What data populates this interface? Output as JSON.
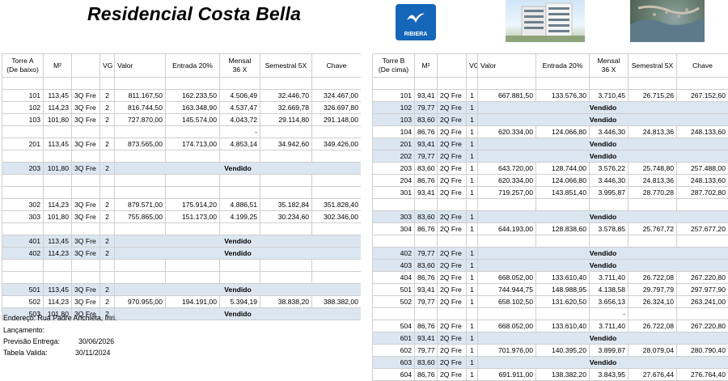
{
  "title": "Residencial Costa Bella",
  "logo_text": "RIBIERA",
  "brand_color": "#1565b8",
  "sold_row_color": "#dce6f1",
  "towerA": {
    "headers": [
      "Torre A\n(De baixo)",
      "M²",
      "",
      "VG",
      "Valor",
      "Entrada 20%",
      "Mensal\n36 X",
      "Semestral 5X",
      "Chave"
    ],
    "rows": [
      {
        "type": "blank"
      },
      {
        "type": "row",
        "unit": "101",
        "m2": "113,45",
        "tipo": "3Q Fre",
        "vg": "2",
        "valor": "811.167,50",
        "entrada": "162.233,50",
        "mensal": "4.506,49",
        "semestral": "32.446,70",
        "chave": "324.467,00"
      },
      {
        "type": "row",
        "unit": "102",
        "m2": "114,23",
        "tipo": "3Q Fre",
        "vg": "2",
        "valor": "816.744,50",
        "entrada": "163.348,90",
        "mensal": "4.537,47",
        "semestral": "32.669,78",
        "chave": "326.697,80"
      },
      {
        "type": "row",
        "unit": "103",
        "m2": "101,80",
        "tipo": "3Q Fre",
        "vg": "2",
        "valor": "727.870,00",
        "entrada": "145.574,00",
        "mensal": "4.043,72",
        "semestral": "29.114,80",
        "chave": "291.148,00"
      },
      {
        "type": "row",
        "unit": "",
        "m2": "",
        "tipo": "",
        "vg": "",
        "valor": "",
        "entrada": "",
        "mensal": "-",
        "semestral": "",
        "chave": ""
      },
      {
        "type": "row",
        "unit": "201",
        "m2": "113,45",
        "tipo": "3Q Fre",
        "vg": "2",
        "valor": "873.565,00",
        "entrada": "174.713,00",
        "mensal": "4.853,14",
        "semestral": "34.942,60",
        "chave": "349.426,00"
      },
      {
        "type": "blank"
      },
      {
        "type": "sold",
        "unit": "203",
        "m2": "101,80",
        "tipo": "3Q Fre",
        "vg": "2",
        "label": "Vendido"
      },
      {
        "type": "blank"
      },
      {
        "type": "blank"
      },
      {
        "type": "row",
        "unit": "302",
        "m2": "114,23",
        "tipo": "3Q Fre",
        "vg": "2",
        "valor": "879.571,00",
        "entrada": "175.914,20",
        "mensal": "4.886,51",
        "semestral": "35.182,84",
        "chave": "351.828,40"
      },
      {
        "type": "row",
        "unit": "303",
        "m2": "101,80",
        "tipo": "3Q Fre",
        "vg": "2",
        "valor": "755.865,00",
        "entrada": "151.173,00",
        "mensal": "4.199,25",
        "semestral": "30.234,60",
        "chave": "302.346,00"
      },
      {
        "type": "blank"
      },
      {
        "type": "sold",
        "unit": "401",
        "m2": "113,45",
        "tipo": "3Q Fre",
        "vg": "2",
        "label": "Vendido"
      },
      {
        "type": "sold",
        "unit": "402",
        "m2": "114,23",
        "tipo": "3Q Fre",
        "vg": "2",
        "label": "Vendido"
      },
      {
        "type": "blank"
      },
      {
        "type": "blank"
      },
      {
        "type": "sold",
        "unit": "501",
        "m2": "113,45",
        "tipo": "3Q Fre",
        "vg": "2",
        "label": "Vendido"
      },
      {
        "type": "row",
        "unit": "502",
        "m2": "114,23",
        "tipo": "3Q Fre",
        "vg": "2",
        "valor": "970.955,00",
        "entrada": "194.191,00",
        "mensal": "5.394,19",
        "semestral": "38.838,20",
        "chave": "388.382,00"
      },
      {
        "type": "sold",
        "unit": "503",
        "m2": "101,80",
        "tipo": "3Q Fre",
        "vg": "2",
        "label": "Vendido"
      }
    ]
  },
  "towerB": {
    "headers": [
      "Torre B\n(De cima)",
      "M²",
      "",
      "VG",
      "Valor",
      "Entrada 20%",
      "Mensal\n36 X",
      "Semestral 5X",
      "Chave"
    ],
    "rows": [
      {
        "type": "blank"
      },
      {
        "type": "row",
        "unit": "101",
        "m2": "93,41",
        "tipo": "2Q Fre",
        "vg": "1",
        "valor": "667.881,50",
        "entrada": "133.576,30",
        "mensal": "3.710,45",
        "semestral": "26.715,26",
        "chave": "267.152,60"
      },
      {
        "type": "sold",
        "unit": "102",
        "m2": "79,77",
        "tipo": "2Q Fre",
        "vg": "1",
        "label": "Vendido"
      },
      {
        "type": "sold",
        "unit": "103",
        "m2": "83,60",
        "tipo": "2Q Fre",
        "vg": "1",
        "label": "Vendido"
      },
      {
        "type": "row",
        "unit": "104",
        "m2": "86,76",
        "tipo": "2Q Fre",
        "vg": "1",
        "valor": "620.334,00",
        "entrada": "124.066,80",
        "mensal": "3.446,30",
        "semestral": "24.813,36",
        "chave": "248.133,60"
      },
      {
        "type": "sold",
        "unit": "201",
        "m2": "93,41",
        "tipo": "2Q Fre",
        "vg": "1",
        "label": "Vendido"
      },
      {
        "type": "sold",
        "unit": "202",
        "m2": "79,77",
        "tipo": "2Q Fre",
        "vg": "1",
        "label": "Vendido"
      },
      {
        "type": "row",
        "unit": "203",
        "m2": "83,60",
        "tipo": "2Q Fre",
        "vg": "1",
        "valor": "643.720,00",
        "entrada": "128.744,00",
        "mensal": "3.576,22",
        "semestral": "25.748,80",
        "chave": "257.488,00"
      },
      {
        "type": "row",
        "unit": "204",
        "m2": "86,76",
        "tipo": "2Q Fre",
        "vg": "1",
        "valor": "620.334,00",
        "entrada": "124.066,80",
        "mensal": "3.446,30",
        "semestral": "24.813,36",
        "chave": "248.133,60"
      },
      {
        "type": "row",
        "unit": "301",
        "m2": "93,41",
        "tipo": "2Q Fre",
        "vg": "1",
        "valor": "719.257,00",
        "entrada": "143.851,40",
        "mensal": "3.995,87",
        "semestral": "28.770,28",
        "chave": "287.702,80"
      },
      {
        "type": "blank"
      },
      {
        "type": "sold",
        "unit": "303",
        "m2": "83,60",
        "tipo": "2Q Fre",
        "vg": "1",
        "label": "Vendido"
      },
      {
        "type": "row",
        "unit": "304",
        "m2": "86,76",
        "tipo": "2Q Fre",
        "vg": "1",
        "valor": "644.193,00",
        "entrada": "128.838,60",
        "mensal": "3.578,85",
        "semestral": "25.767,72",
        "chave": "257.677,20"
      },
      {
        "type": "blank"
      },
      {
        "type": "sold",
        "unit": "402",
        "m2": "79,77",
        "tipo": "2Q Fre",
        "vg": "1",
        "label": "Vendido"
      },
      {
        "type": "sold",
        "unit": "403",
        "m2": "83,60",
        "tipo": "2Q Fre",
        "vg": "1",
        "label": "Vendido"
      },
      {
        "type": "row",
        "unit": "404",
        "m2": "86,76",
        "tipo": "2Q Fre",
        "vg": "1",
        "valor": "668.052,00",
        "entrada": "133.610,40",
        "mensal": "3.711,40",
        "semestral": "26.722,08",
        "chave": "267.220,80"
      },
      {
        "type": "row",
        "unit": "501",
        "m2": "93,41",
        "tipo": "2Q Fre",
        "vg": "1",
        "valor": "744.944,75",
        "entrada": "148.988,95",
        "mensal": "4.138,58",
        "semestral": "29.797,79",
        "chave": "297.977,90"
      },
      {
        "type": "row",
        "unit": "502",
        "m2": "79,77",
        "tipo": "2Q Fre",
        "vg": "1",
        "valor": "658.102,50",
        "entrada": "131.620,50",
        "mensal": "3.656,13",
        "semestral": "26.324,10",
        "chave": "263.241,00"
      },
      {
        "type": "row",
        "unit": "",
        "m2": "",
        "tipo": "",
        "vg": "",
        "valor": "",
        "entrada": "",
        "mensal": "-",
        "semestral": "",
        "chave": ""
      },
      {
        "type": "row",
        "unit": "504",
        "m2": "86,76",
        "tipo": "2Q Fre",
        "vg": "1",
        "valor": "668.052,00",
        "entrada": "133.610,40",
        "mensal": "3.711,40",
        "semestral": "26.722,08",
        "chave": "267.220,80"
      },
      {
        "type": "sold",
        "unit": "601",
        "m2": "93,41",
        "tipo": "2Q Fre",
        "vg": "1",
        "label": "Vendido"
      },
      {
        "type": "row",
        "unit": "602",
        "m2": "79,77",
        "tipo": "2Q Fre",
        "vg": "1",
        "valor": "701.976,00",
        "entrada": "140.395,20",
        "mensal": "3.899,87",
        "semestral": "28.079,04",
        "chave": "280.790,40"
      },
      {
        "type": "sold",
        "unit": "603",
        "m2": "83,60",
        "tipo": "2Q Fre",
        "vg": "1",
        "label": "Vendido"
      },
      {
        "type": "row",
        "unit": "604",
        "m2": "86,76",
        "tipo": "2Q Fre",
        "vg": "1",
        "valor": "691.911,00",
        "entrada": "138.382,20",
        "mensal": "3.843,95",
        "semestral": "27.676,44",
        "chave": "276.764,40"
      }
    ]
  },
  "info": {
    "endereco": "Endereço: Rua Padre Anchieta, Iriri.",
    "lancamento": "Lançamento:",
    "previsao_label": "Previsão Entrega:",
    "previsao_value": "30/06/2026",
    "tabela_label": "Tabela Valida:",
    "tabela_value": "30/11/2024"
  }
}
